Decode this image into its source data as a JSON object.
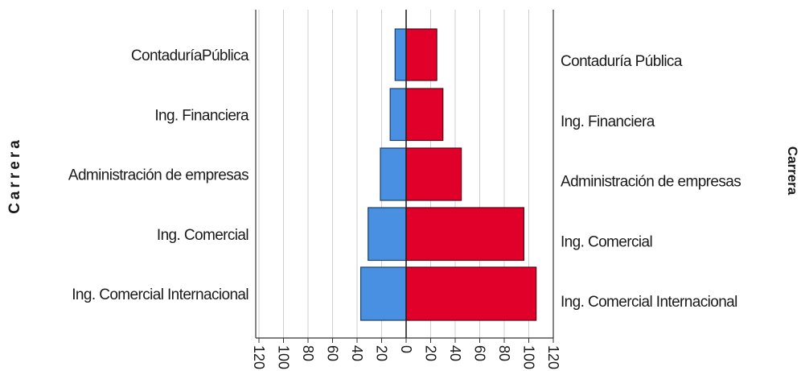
{
  "chart_data": {
    "type": "bar",
    "orientation": "horizontal",
    "layout": "back-to-back",
    "categories_left": [
      "ContaduríaPública",
      "Ing. Financiera",
      "Administración de empresas",
      "Ing. Comercial",
      "Ing. Comercial Internacional"
    ],
    "categories_right": [
      "Contaduría Pública",
      "Ing. Financiera",
      "Administración de empresas",
      "Ing. Comercial",
      "Ing. Comercial Internacional"
    ],
    "series": [
      {
        "side": "left",
        "color": "#4a90e2",
        "values": [
          9,
          13,
          21,
          31,
          37
        ]
      },
      {
        "side": "right",
        "color": "#e0002a",
        "values": [
          25,
          30,
          45,
          96,
          106
        ]
      }
    ],
    "xlim": [
      -120,
      120
    ],
    "x_ticks": [
      "120",
      "100",
      "80",
      "60",
      "40",
      "20",
      "0",
      "20",
      "40",
      "60",
      "80",
      "100",
      "120"
    ],
    "ylabel_left": "Carrera",
    "ylabel_right": "Carrera",
    "grid": true
  }
}
